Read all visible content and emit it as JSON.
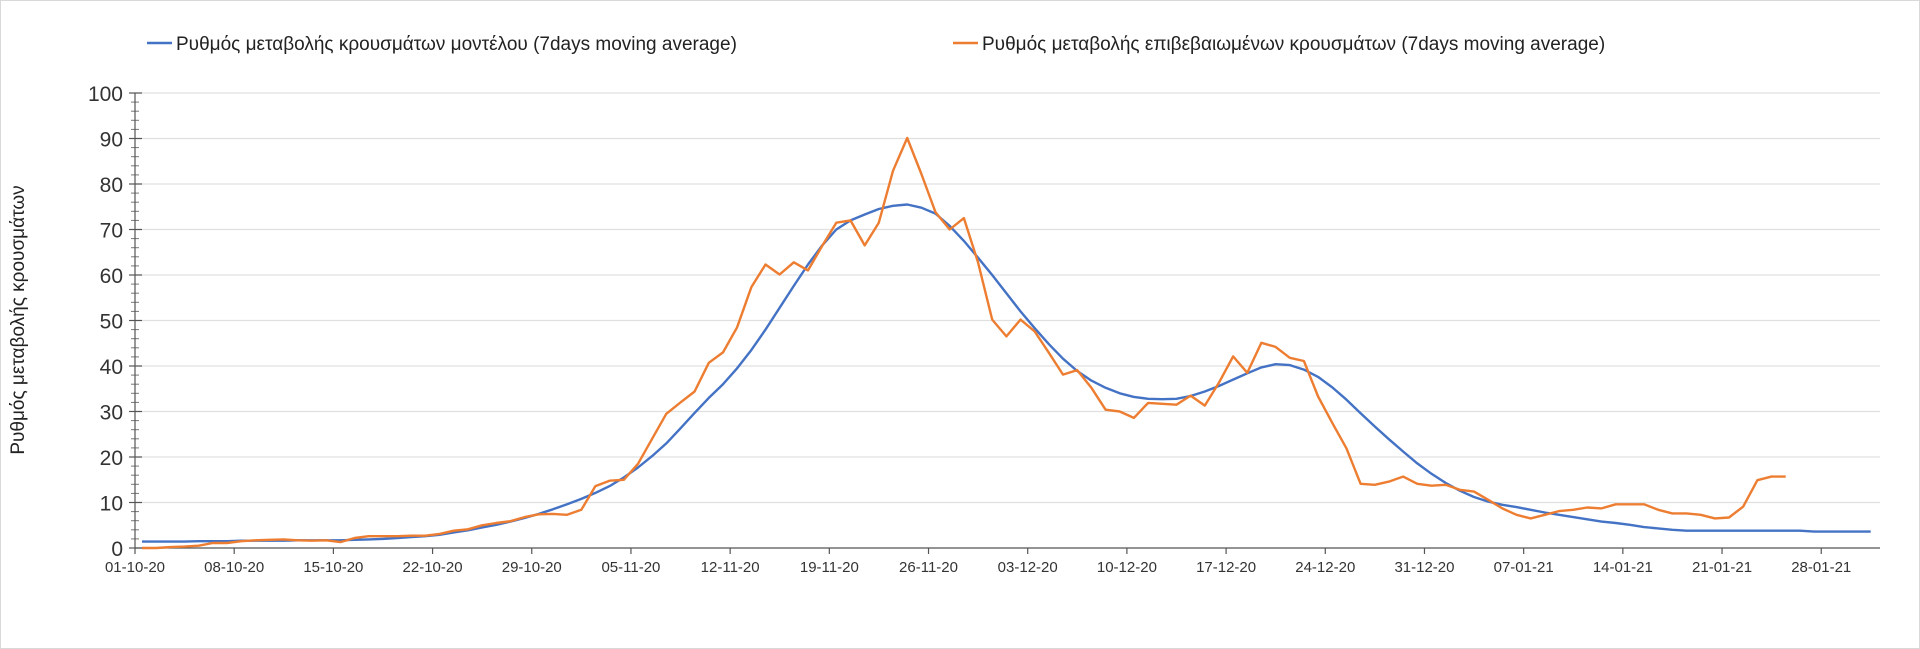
{
  "chart_data": {
    "type": "line",
    "title": "",
    "xlabel": "",
    "ylabel": "Ρυθμός μεταβολής κρουσμάτων",
    "ylim": [
      0,
      100
    ],
    "y_ticks": [
      0,
      10,
      20,
      30,
      40,
      50,
      60,
      70,
      80,
      90,
      100
    ],
    "y_minor_step": 2,
    "grid": true,
    "legend_position": "top",
    "x_start": "01-10-20",
    "x_unit": "day",
    "x_tick_every_days": 7,
    "x_tick_labels": [
      "01-10-20",
      "08-10-20",
      "15-10-20",
      "22-10-20",
      "29-10-20",
      "05-11-20",
      "12-11-20",
      "19-11-20",
      "26-11-20",
      "03-12-20",
      "10-12-20",
      "17-12-20",
      "24-12-20",
      "31-12-20",
      "07-01-21",
      "14-01-21",
      "21-01-21",
      "28-01-21"
    ],
    "series": [
      {
        "name": "Ρυθμός μεταβολής κρουσμάτων μοντέλου (7days moving average)",
        "color": "#4472C4",
        "values": [
          1.4,
          1.4,
          1.4,
          1.4,
          1.5,
          1.5,
          1.5,
          1.6,
          1.6,
          1.6,
          1.6,
          1.7,
          1.7,
          1.7,
          1.7,
          1.8,
          1.9,
          2.0,
          2.2,
          2.4,
          2.6,
          2.9,
          3.4,
          3.9,
          4.5,
          5.1,
          5.8,
          6.6,
          7.5,
          8.5,
          9.6,
          10.8,
          12.1,
          13.6,
          15.5,
          17.7,
          20.2,
          23,
          26.3,
          29.7,
          33,
          36,
          39.5,
          43.5,
          48,
          52.8,
          57.6,
          62.3,
          66.5,
          70,
          72,
          73.3,
          74.5,
          75.2,
          75.5,
          74.8,
          73.5,
          70.8,
          67.5,
          63.8,
          60,
          56,
          52,
          48.3,
          44.8,
          41.6,
          38.9,
          36.8,
          35.2,
          34,
          33.2,
          32.8,
          32.7,
          32.8,
          33.4,
          34.4,
          35.6,
          37,
          38.4,
          39.7,
          40.4,
          40.2,
          39.2,
          37.6,
          35.3,
          32.6,
          29.6,
          26.7,
          23.9,
          21.2,
          18.6,
          16.3,
          14.3,
          12.6,
          11.2,
          10.2,
          9.5,
          9,
          8.4,
          7.8,
          7.3,
          6.8,
          6.3,
          5.8,
          5.5,
          5.1,
          4.6,
          4.3,
          4.0,
          3.8,
          3.8,
          3.8,
          3.8,
          3.8,
          3.8,
          3.8,
          3.8,
          3.8,
          3.6,
          3.6,
          3.6,
          3.6,
          3.6
        ]
      },
      {
        "name": "Ρυθμός μεταβολής επιβεβαιωμένων κρουσμάτων (7days moving average)",
        "color": "#ED7D31",
        "values": [
          0,
          0,
          0.2,
          0.3,
          0.5,
          1.1,
          1.1,
          1.5,
          1.7,
          1.8,
          1.9,
          1.7,
          1.6,
          1.7,
          1.3,
          2.2,
          2.6,
          2.6,
          2.6,
          2.7,
          2.7,
          3.1,
          3.8,
          4.1,
          5.0,
          5.5,
          5.9,
          6.8,
          7.4,
          7.5,
          7.3,
          8.4,
          13.6,
          14.8,
          15.0,
          18.5,
          24,
          29.5,
          32,
          34.4,
          40.7,
          43,
          48.5,
          57.3,
          62.3,
          60.1,
          62.8,
          61,
          66.4,
          71.5,
          72,
          66.5,
          71.5,
          82.9,
          90.1,
          82.2,
          73.8,
          70,
          72.5,
          62.8,
          50.2,
          46.5,
          50.2,
          47.6,
          42.9,
          38.1,
          39.1,
          35.2,
          30.4,
          30,
          28.6,
          31.9,
          31.7,
          31.5,
          33.5,
          31.3,
          36.3,
          42.1,
          38.5,
          45.1,
          44.2,
          41.8,
          41.1,
          33.3,
          27.5,
          21.9,
          14.1,
          13.9,
          14.6,
          15.7,
          14.1,
          13.7,
          13.9,
          12.8,
          12.4,
          10.6,
          8.7,
          7.3,
          6.5,
          7.3,
          8.1,
          8.4,
          8.9,
          8.7,
          9.6,
          9.6,
          9.6,
          8.4,
          7.6,
          7.6,
          7.3,
          6.5,
          6.7,
          9.1,
          14.9,
          15.7,
          15.7
        ]
      }
    ]
  }
}
